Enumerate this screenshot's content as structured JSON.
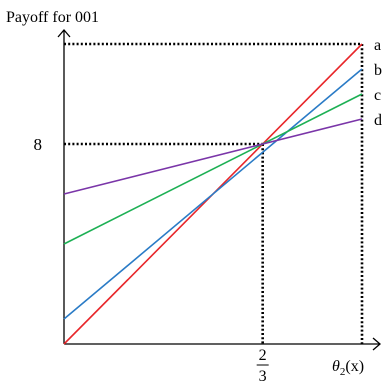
{
  "chart_data": {
    "type": "line",
    "ylabel": "Payoff for 001",
    "xlabel": "θ2(x)",
    "xlim": [
      0,
      1
    ],
    "ylim": [
      0,
      12
    ],
    "x_ticks": [
      {
        "value": 0.6667,
        "numerator": "2",
        "denominator": "3"
      }
    ],
    "y_ticks": [
      {
        "value": 8,
        "label": "8"
      }
    ],
    "guide_lines": [
      {
        "from": [
          0,
          8
        ],
        "to": [
          0.6667,
          8
        ]
      },
      {
        "from": [
          0.6667,
          8
        ],
        "to": [
          0.6667,
          0
        ]
      },
      {
        "from": [
          0,
          12
        ],
        "to": [
          1,
          12
        ]
      },
      {
        "from": [
          1,
          12
        ],
        "to": [
          1,
          0
        ]
      }
    ],
    "series": [
      {
        "name": "a",
        "color": "#e8262a",
        "points": [
          [
            0,
            0
          ],
          [
            1,
            12
          ]
        ]
      },
      {
        "name": "b",
        "color": "#2a7bc6",
        "points": [
          [
            0,
            1.0
          ],
          [
            1,
            11.0
          ]
        ]
      },
      {
        "name": "c",
        "color": "#1db054",
        "points": [
          [
            0,
            4.0
          ],
          [
            1,
            10.0
          ]
        ]
      },
      {
        "name": "d",
        "color": "#7a35a8",
        "points": [
          [
            0,
            6.0
          ],
          [
            1,
            9.0
          ]
        ]
      }
    ]
  }
}
